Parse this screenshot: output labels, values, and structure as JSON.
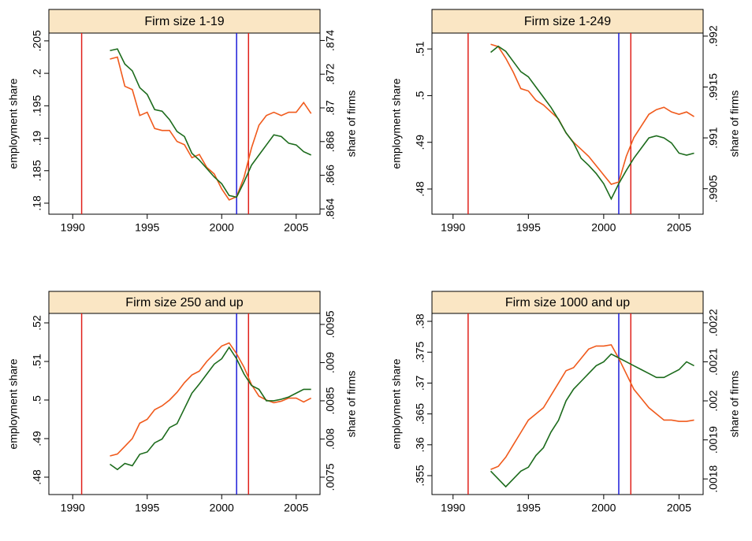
{
  "chart_data": [
    {
      "type": "line",
      "title": "Firm size 1-19",
      "ylabel": "employment share",
      "y2label": "share of firms",
      "x": [
        1992.5,
        1993,
        1993.5,
        1994,
        1994.5,
        1995,
        1995.5,
        1996,
        1996.5,
        1997,
        1997.5,
        1998,
        1998.5,
        1999,
        1999.5,
        2000,
        2000.5,
        2001,
        2001.5,
        2002,
        2002.5,
        2003,
        2003.5,
        2004,
        2004.5,
        2005,
        2005.5,
        2006
      ],
      "series": [
        {
          "color": "#f05a1c",
          "axis": "y",
          "values": [
            0.2022,
            0.2025,
            0.198,
            0.1975,
            0.1935,
            0.194,
            0.1915,
            0.1912,
            0.1912,
            0.1895,
            0.189,
            0.187,
            0.1875,
            0.1855,
            0.1845,
            0.1822,
            0.1805,
            0.181,
            0.184,
            0.1885,
            0.192,
            0.1935,
            0.194,
            0.1935,
            0.194,
            0.194,
            0.1955,
            0.1938
          ]
        },
        {
          "color": "#1c6b1c",
          "axis": "y2",
          "values": [
            0.8734,
            0.8735,
            0.8726,
            0.8722,
            0.8712,
            0.8708,
            0.8699,
            0.8698,
            0.8693,
            0.8686,
            0.8683,
            0.8673,
            0.8669,
            0.8664,
            0.8659,
            0.8655,
            0.8648,
            0.8647,
            0.8656,
            0.8666,
            0.8672,
            0.8678,
            0.8684,
            0.8683,
            0.8679,
            0.8678,
            0.8674,
            0.8672
          ]
        }
      ],
      "vlines": [
        {
          "value": 1990.6,
          "color": "#e0201a"
        },
        {
          "value": 2001.0,
          "color": "#1c1cd8"
        },
        {
          "value": 2001.8,
          "color": "#e0201a"
        }
      ],
      "xlim": [
        1988.4,
        2006.6
      ],
      "xticks": [
        1990,
        1995,
        2000,
        2005
      ],
      "ylim": [
        0.1783,
        0.2062
      ],
      "yticks": [
        {
          "value": 0.18,
          "label": ".18"
        },
        {
          "value": 0.185,
          "label": ".185"
        },
        {
          "value": 0.19,
          "label": ".19"
        },
        {
          "value": 0.195,
          "label": ".195"
        },
        {
          "value": 0.2,
          "label": ".2"
        },
        {
          "value": 0.205,
          "label": ".205"
        }
      ],
      "y2lim": [
        0.86369,
        0.87444
      ],
      "y2ticks": [
        {
          "value": 0.864,
          "label": ".864"
        },
        {
          "value": 0.866,
          "label": ".866"
        },
        {
          "value": 0.868,
          "label": ".868"
        },
        {
          "value": 0.87,
          "label": ".87"
        },
        {
          "value": 0.872,
          "label": ".872"
        },
        {
          "value": 0.874,
          "label": ".874"
        }
      ]
    },
    {
      "type": "line",
      "title": "Firm size 1-249",
      "ylabel": "employment share",
      "y2label": "share of firms",
      "x": [
        1992.5,
        1993,
        1993.5,
        1994,
        1994.5,
        1995,
        1995.5,
        1996,
        1996.5,
        1997,
        1997.5,
        1998,
        1998.5,
        1999,
        1999.5,
        2000,
        2000.5,
        2001,
        2001.5,
        2002,
        2002.5,
        2003,
        2003.5,
        2004,
        2004.5,
        2005,
        2005.5,
        2006
      ],
      "series": [
        {
          "color": "#f05a1c",
          "axis": "y",
          "values": [
            0.511,
            0.5105,
            0.508,
            0.505,
            0.5015,
            0.501,
            0.499,
            0.498,
            0.4965,
            0.495,
            0.492,
            0.49,
            0.4885,
            0.487,
            0.485,
            0.483,
            0.481,
            0.4815,
            0.487,
            0.491,
            0.4935,
            0.496,
            0.497,
            0.4975,
            0.4965,
            0.496,
            0.4965,
            0.4955
          ]
        },
        {
          "color": "#1c6b1c",
          "axis": "y2",
          "values": [
            0.99184,
            0.9919,
            0.99185,
            0.99175,
            0.99165,
            0.9916,
            0.9915,
            0.9914,
            0.9913,
            0.99118,
            0.99105,
            0.99095,
            0.9908,
            0.99073,
            0.99065,
            0.99055,
            0.9904,
            0.99055,
            0.99068,
            0.9908,
            0.9909,
            0.991,
            0.99102,
            0.991,
            0.99095,
            0.99085,
            0.99083,
            0.99085
          ]
        }
      ],
      "vlines": [
        {
          "value": 1991.0,
          "color": "#e0201a"
        },
        {
          "value": 2001.0,
          "color": "#1c1cd8"
        },
        {
          "value": 2001.8,
          "color": "#e0201a"
        }
      ],
      "xlim": [
        1988.6,
        2006.6
      ],
      "xticks": [
        1990,
        1995,
        2000,
        2005
      ],
      "ylim": [
        0.4746,
        0.5134
      ],
      "yticks": [
        {
          "value": 0.48,
          "label": ".48"
        },
        {
          "value": 0.49,
          "label": ".49"
        },
        {
          "value": 0.5,
          "label": ".5"
        },
        {
          "value": 0.51,
          "label": ".51"
        }
      ],
      "y2lim": [
        0.99025,
        0.99203
      ],
      "y2ticks": [
        {
          "value": 0.9905,
          "label": ".9905"
        },
        {
          "value": 0.991,
          "label": ".991"
        },
        {
          "value": 0.9915,
          "label": ".9915"
        },
        {
          "value": 0.992,
          "label": ".992"
        }
      ]
    },
    {
      "type": "line",
      "title": "Firm size 250 and up",
      "ylabel": "employment share",
      "y2label": "share of firms",
      "x": [
        1992.5,
        1993,
        1993.5,
        1994,
        1994.5,
        1995,
        1995.5,
        1996,
        1996.5,
        1997,
        1997.5,
        1998,
        1998.5,
        1999,
        1999.5,
        2000,
        2000.5,
        2001,
        2001.5,
        2002,
        2002.5,
        2003,
        2003.5,
        2004,
        2004.5,
        2005,
        2005.5,
        2006
      ],
      "series": [
        {
          "color": "#f05a1c",
          "axis": "y",
          "values": [
            0.4855,
            0.486,
            0.488,
            0.49,
            0.494,
            0.495,
            0.4975,
            0.4985,
            0.5,
            0.502,
            0.5045,
            0.5065,
            0.5075,
            0.51,
            0.512,
            0.514,
            0.5148,
            0.512,
            0.5085,
            0.504,
            0.501,
            0.5,
            0.4993,
            0.4997,
            0.5005,
            0.5005,
            0.4995,
            0.5005
          ]
        },
        {
          "color": "#1c6b1c",
          "axis": "y2",
          "values": [
            0.00767,
            0.0076,
            0.00768,
            0.00765,
            0.0078,
            0.00783,
            0.00795,
            0.008,
            0.00815,
            0.0082,
            0.0084,
            0.0086,
            0.00872,
            0.00885,
            0.00898,
            0.00905,
            0.0092,
            0.00905,
            0.00885,
            0.0087,
            0.00865,
            0.0085,
            0.0085,
            0.00852,
            0.00855,
            0.0086,
            0.00865,
            0.00865
          ]
        }
      ],
      "vlines": [
        {
          "value": 1990.6,
          "color": "#e0201a"
        },
        {
          "value": 2001.0,
          "color": "#1c1cd8"
        },
        {
          "value": 2001.8,
          "color": "#e0201a"
        }
      ],
      "xlim": [
        1988.4,
        2006.6
      ],
      "xticks": [
        1990,
        1995,
        2000,
        2005
      ],
      "ylim": [
        0.4755,
        0.52245
      ],
      "yticks": [
        {
          "value": 0.48,
          "label": ".48"
        },
        {
          "value": 0.49,
          "label": ".49"
        },
        {
          "value": 0.5,
          "label": ".5"
        },
        {
          "value": 0.51,
          "label": ".51"
        },
        {
          "value": 0.52,
          "label": ".52"
        }
      ],
      "y2lim": [
        0.007273,
        0.009644
      ],
      "y2ticks": [
        {
          "value": 0.0075,
          "label": ".0075"
        },
        {
          "value": 0.008,
          "label": ".008"
        },
        {
          "value": 0.0085,
          "label": ".0085"
        },
        {
          "value": 0.009,
          "label": ".009"
        },
        {
          "value": 0.0095,
          "label": ".0095"
        }
      ]
    },
    {
      "type": "line",
      "title": "Firm size 1000 and up",
      "ylabel": "employment share",
      "y2label": "share of firms",
      "x": [
        1992.5,
        1993,
        1993.5,
        1994,
        1994.5,
        1995,
        1995.5,
        1996,
        1996.5,
        1997,
        1997.5,
        1998,
        1998.5,
        1999,
        1999.5,
        2000,
        2000.5,
        2001,
        2001.5,
        2002,
        2002.5,
        2003,
        2003.5,
        2004,
        2004.5,
        2005,
        2005.5,
        2006
      ],
      "series": [
        {
          "color": "#f05a1c",
          "axis": "y",
          "values": [
            0.356,
            0.3565,
            0.358,
            0.36,
            0.362,
            0.364,
            0.365,
            0.366,
            0.368,
            0.37,
            0.372,
            0.3725,
            0.374,
            0.3755,
            0.376,
            0.376,
            0.3762,
            0.374,
            0.3715,
            0.369,
            0.3675,
            0.366,
            0.365,
            0.364,
            0.364,
            0.3638,
            0.3638,
            0.364
          ]
        },
        {
          "color": "#1c6b1c",
          "axis": "y2",
          "values": [
            0.00182,
            0.0018,
            0.00178,
            0.0018,
            0.00182,
            0.00183,
            0.00186,
            0.00188,
            0.00192,
            0.00195,
            0.002,
            0.00203,
            0.00205,
            0.00207,
            0.00209,
            0.0021,
            0.00212,
            0.00211,
            0.0021,
            0.00209,
            0.00208,
            0.00207,
            0.00206,
            0.00206,
            0.00207,
            0.00208,
            0.0021,
            0.00209
          ]
        }
      ],
      "vlines": [
        {
          "value": 1991.0,
          "color": "#e0201a"
        },
        {
          "value": 2001.0,
          "color": "#1c1cd8"
        },
        {
          "value": 2001.8,
          "color": "#e0201a"
        }
      ],
      "xlim": [
        1988.6,
        2006.6
      ],
      "xticks": [
        1990,
        1995,
        2000,
        2005
      ],
      "ylim": [
        0.35194,
        0.38128
      ],
      "yticks": [
        {
          "value": 0.355,
          "label": ".355"
        },
        {
          "value": 0.36,
          "label": ".36"
        },
        {
          "value": 0.365,
          "label": ".365"
        },
        {
          "value": 0.37,
          "label": ".37"
        },
        {
          "value": 0.375,
          "label": ".375"
        },
        {
          "value": 0.38,
          "label": ".38"
        }
      ],
      "y2lim": [
        0.00176,
        0.002224
      ],
      "y2ticks": [
        {
          "value": 0.0018,
          "label": ".0018"
        },
        {
          "value": 0.0019,
          "label": ".0019"
        },
        {
          "value": 0.002,
          "label": ".002"
        },
        {
          "value": 0.0021,
          "label": ".0021"
        },
        {
          "value": 0.0022,
          "label": ".0022"
        }
      ]
    }
  ]
}
